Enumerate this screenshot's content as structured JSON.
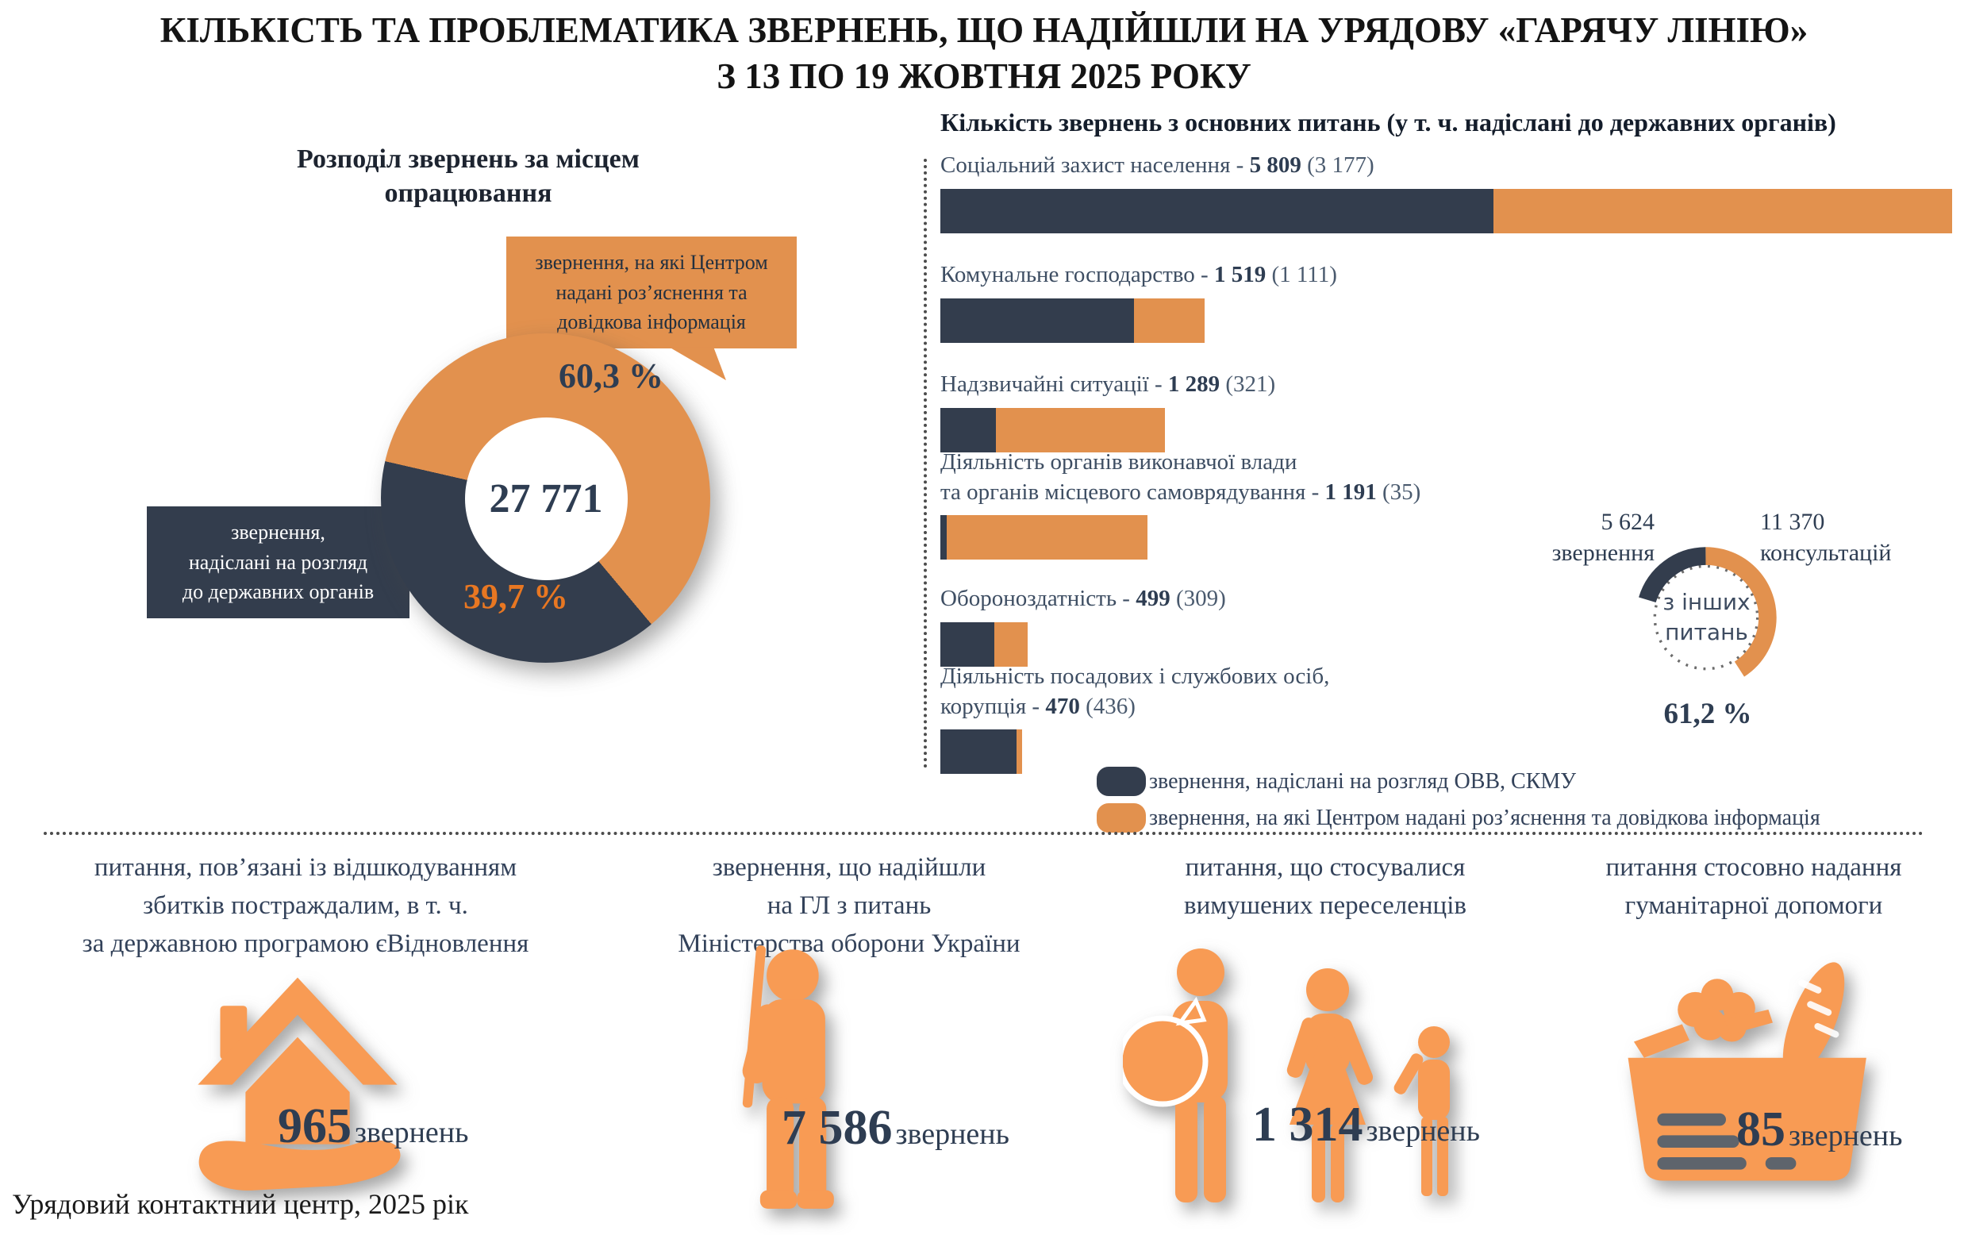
{
  "title": {
    "line1": "КІЛЬКІСТЬ ТА ПРОБЛЕМАТИКА ЗВЕРНЕНЬ, ЩО НАДІЙШЛИ НА УРЯДОВУ «ГАРЯЧУ ЛІНІЮ»",
    "line2": "З 13 ПО 19 ЖОВТНЯ 2025 РОКУ"
  },
  "colors": {
    "dark_navy": "#333D4D",
    "orange": "#E2914E",
    "icon_orange": "#F89B54",
    "orange_text_accent": "#E87722",
    "navy_text": "#2E3D52"
  },
  "left_donut": {
    "title": "Розподіл звернень за місцем опрацювання",
    "total": "27 771",
    "orange_pct_label": "60,3 %",
    "dark_pct_label": "39,7 %",
    "callout_orange": {
      "line1": "звернення, на які Центром",
      "line2": "надані роз’яснення та",
      "line3": "довідкова інформація"
    },
    "callout_dark": {
      "line1": "звернення,",
      "line2": "надіслані на розгляд",
      "line3": "до державних органів"
    }
  },
  "right_chart": {
    "title": "Кількість звернень з основних питань (у т. ч. надіслані до державних органів)",
    "bars": [
      {
        "label": "Соціальний захист населення - ",
        "value_label": "5 809",
        "paren_label": " (3 177)"
      },
      {
        "label": "Комунальне господарство - ",
        "value_label": "1 519",
        "paren_label": " (1 111)"
      },
      {
        "label": "Надзвичайні ситуації - ",
        "value_label": "1 289",
        "paren_label": " (321)"
      },
      {
        "pre": "Діяльність органів виконавчої влади",
        "label": "та органів місцевого самоврядування - ",
        "value_label": "1 191",
        "paren_label": " (35)"
      },
      {
        "label": "Обороноздатність - ",
        "value_label": "499",
        "paren_label": " (309)"
      },
      {
        "pre": "Діяльність посадових і службових осіб,",
        "label": "корупція - ",
        "value_label": "470",
        "paren_label": " (436)"
      }
    ]
  },
  "legend": [
    {
      "label": "звернення, надіслані на розгляд ОВВ, СКМУ"
    },
    {
      "label": "звернення, на які Центром надані роз’яснення та довідкова інформація"
    }
  ],
  "other_donut": {
    "left_value": "5 624",
    "left_unit": "звернення",
    "right_value": "11 370",
    "right_unit": "консультацій",
    "center_line1": "з інших",
    "center_line2": "питань",
    "pct_label": "61,2 %"
  },
  "bottom": {
    "sections": [
      {
        "lines": [
          "питання, пов’язані із відшкодуванням",
          "збитків постраждалим, в т. ч.",
          "за державною програмою єВідновлення"
        ],
        "value": "965",
        "unit": "звернень"
      },
      {
        "lines": [
          "звернення, що надійшли",
          "на ГЛ з питань",
          "Міністерства оборони України"
        ],
        "value": "7 586",
        "unit": "звернень"
      },
      {
        "lines": [
          "питання, що стосувалися",
          "вимушених переселенців"
        ],
        "value": "1 314",
        "unit": "звернень"
      },
      {
        "lines": [
          "питання стосовно надання",
          "гуманітарної допомоги"
        ],
        "value": "85",
        "unit": "звернень"
      }
    ]
  },
  "footer": "Урядовий контактний центр, 2025 рік",
  "chart_data": [
    {
      "type": "pie",
      "title": "Розподіл звернень за місцем опрацювання",
      "labels": [
        "звернення, на які Центром надані роз’яснення та довідкова інформація",
        "звернення, надіслані на розгляд до державних органів"
      ],
      "values_pct": [
        60.3,
        39.7
      ],
      "center_total": 27771,
      "legend_position": "callouts",
      "donut": true
    },
    {
      "type": "bar",
      "title": "Кількість звернень з основних питань (у т. ч. надіслані до державних органів)",
      "orientation": "horizontal",
      "categories": [
        "Соціальний захист населення",
        "Комунальне господарство",
        "Надзвичайні ситуації",
        "Діяльність органів виконавчої влади та органів місцевого самоврядування",
        "Обороноздатність",
        "Діяльність посадових і службових осіб, корупція"
      ],
      "totals": [
        5809,
        1519,
        1289,
        1191,
        499,
        470
      ],
      "series": [
        {
          "name": "звернення, надіслані на розгляд ОВВ, СКМУ",
          "values": [
            3177,
            1111,
            321,
            35,
            309,
            436
          ]
        },
        {
          "name": "звернення, на які Центром надані роз’яснення та довідкова інформація",
          "values": [
            2632,
            408,
            968,
            1156,
            190,
            34
          ]
        }
      ],
      "xlim": [
        0,
        5809
      ],
      "grid": false,
      "stacked": true
    },
    {
      "type": "pie",
      "title": "з інших питань",
      "labels": [
        "звернення",
        "консультацій"
      ],
      "values": [
        5624,
        11370
      ],
      "share_of_total_pct": 61.2,
      "donut": true,
      "partial_ring": true
    },
    {
      "type": "table",
      "title": "Окремі категорії звернень",
      "rows": [
        {
          "label": "питання, пов’язані із відшкодуванням збитків постраждалим, в т. ч. за державною програмою єВідновлення",
          "value": 965
        },
        {
          "label": "звернення, що надійшли на ГЛ з питань Міністерства оборони України",
          "value": 7586
        },
        {
          "label": "питання, що стосувалися вимушених переселенців",
          "value": 1314
        },
        {
          "label": "питання стосовно надання гуманітарної допомоги",
          "value": 85
        }
      ]
    }
  ]
}
